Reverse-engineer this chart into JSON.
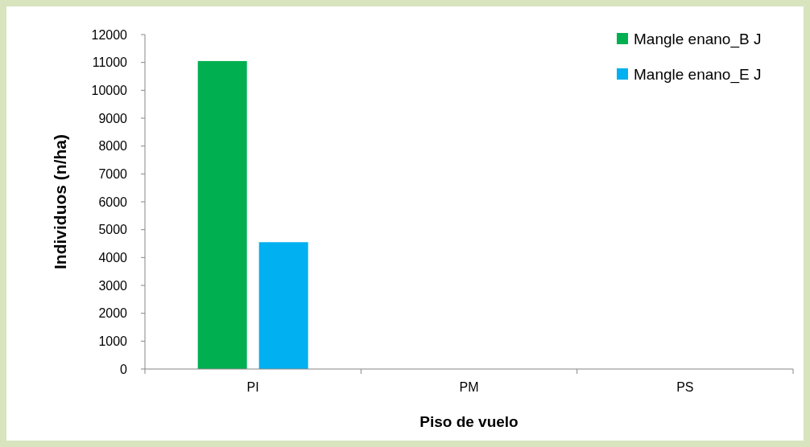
{
  "chart_data": {
    "type": "bar",
    "xlabel": "Piso de vuelo",
    "ylabel": "Individuos (n/ha)",
    "categories": [
      "PI",
      "PM",
      "PS"
    ],
    "series": [
      {
        "name": "Mangle enano_B J",
        "color": "#00b050",
        "values": [
          11050,
          0,
          0
        ]
      },
      {
        "name": "Mangle enano_E J",
        "color": "#00b0f0",
        "values": [
          4550,
          0,
          0
        ]
      }
    ],
    "ylim": [
      0,
      12000
    ],
    "yticks": [
      0,
      1000,
      2000,
      3000,
      4000,
      5000,
      6000,
      7000,
      8000,
      9000,
      10000,
      11000,
      12000
    ],
    "grid": false,
    "legend": "top right"
  }
}
